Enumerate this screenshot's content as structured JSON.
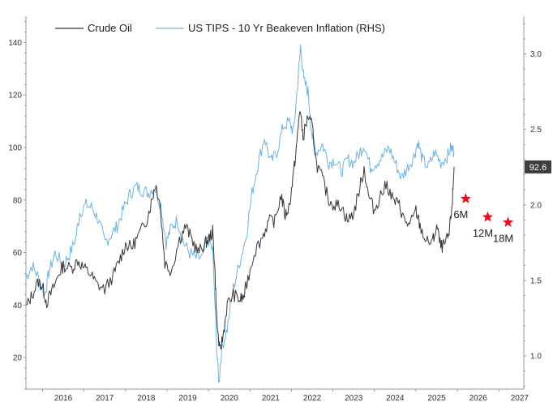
{
  "chart_data": {
    "type": "line",
    "title": "",
    "x": {
      "label": "",
      "range": [
        2015.6,
        2027.6
      ],
      "tick_labels": [
        "2016",
        "2017",
        "2018",
        "2019",
        "2020",
        "2021",
        "2022",
        "2023",
        "2024",
        "2025",
        "2026",
        "2027"
      ]
    },
    "y_left": {
      "label": "",
      "range": [
        8,
        150
      ],
      "ticks": [
        20,
        40,
        60,
        80,
        100,
        120,
        140
      ]
    },
    "y_right": {
      "label": "",
      "range": [
        0.78,
        3.25
      ],
      "ticks": [
        1.0,
        1.5,
        2.0,
        2.5,
        3.0
      ],
      "tick_labels": [
        "1.0",
        "1.5",
        "2.0",
        "2.5",
        "3.0"
      ]
    },
    "legend": {
      "position": "top-left"
    },
    "series": [
      {
        "name": "Crude Oil",
        "axis": "left",
        "color": "#3a3536",
        "points": [
          [
            2015.6,
            39
          ],
          [
            2015.75,
            44
          ],
          [
            2015.9,
            49
          ],
          [
            2016.0,
            47
          ],
          [
            2016.1,
            41
          ],
          [
            2016.25,
            46
          ],
          [
            2016.4,
            52
          ],
          [
            2016.5,
            55
          ],
          [
            2016.7,
            54
          ],
          [
            2016.85,
            57
          ],
          [
            2017.0,
            54
          ],
          [
            2017.15,
            52
          ],
          [
            2017.3,
            48
          ],
          [
            2017.5,
            46
          ],
          [
            2017.7,
            51
          ],
          [
            2017.85,
            57
          ],
          [
            2018.0,
            63
          ],
          [
            2018.15,
            62
          ],
          [
            2018.3,
            66
          ],
          [
            2018.5,
            72
          ],
          [
            2018.62,
            79
          ],
          [
            2018.72,
            86
          ],
          [
            2018.82,
            80
          ],
          [
            2018.95,
            56
          ],
          [
            2019.1,
            53
          ],
          [
            2019.3,
            65
          ],
          [
            2019.45,
            70
          ],
          [
            2019.6,
            65
          ],
          [
            2019.75,
            60
          ],
          [
            2019.9,
            63
          ],
          [
            2020.0,
            65
          ],
          [
            2020.1,
            68
          ],
          [
            2020.15,
            55
          ],
          [
            2020.2,
            34
          ],
          [
            2020.27,
            22
          ],
          [
            2020.35,
            28
          ],
          [
            2020.45,
            40
          ],
          [
            2020.6,
            44
          ],
          [
            2020.75,
            42
          ],
          [
            2020.85,
            43
          ],
          [
            2020.95,
            50
          ],
          [
            2021.1,
            60
          ],
          [
            2021.3,
            66
          ],
          [
            2021.45,
            72
          ],
          [
            2021.6,
            72
          ],
          [
            2021.75,
            82
          ],
          [
            2021.85,
            74
          ],
          [
            2021.95,
            78
          ],
          [
            2022.05,
            90
          ],
          [
            2022.15,
            105
          ],
          [
            2022.2,
            115
          ],
          [
            2022.28,
            104
          ],
          [
            2022.4,
            112
          ],
          [
            2022.5,
            108
          ],
          [
            2022.6,
            94
          ],
          [
            2022.75,
            88
          ],
          [
            2022.9,
            80
          ],
          [
            2023.05,
            78
          ],
          [
            2023.2,
            78
          ],
          [
            2023.35,
            72
          ],
          [
            2023.5,
            75
          ],
          [
            2023.65,
            85
          ],
          [
            2023.75,
            92
          ],
          [
            2023.85,
            82
          ],
          [
            2024.0,
            76
          ],
          [
            2024.15,
            82
          ],
          [
            2024.3,
            86
          ],
          [
            2024.45,
            80
          ],
          [
            2024.6,
            78
          ],
          [
            2024.7,
            73
          ],
          [
            2024.85,
            70
          ],
          [
            2025.0,
            76
          ],
          [
            2025.1,
            70
          ],
          [
            2025.25,
            64
          ],
          [
            2025.4,
            64
          ],
          [
            2025.5,
            70
          ],
          [
            2025.6,
            62
          ],
          [
            2025.7,
            63
          ],
          [
            2025.8,
            67
          ],
          [
            2025.88,
            80
          ],
          [
            2025.92,
            92.6
          ]
        ]
      },
      {
        "name": "US TIPS - 10 Yr Beakeven Inflation (RHS)",
        "axis": "right",
        "color": "#6cb4e0",
        "points": [
          [
            2015.6,
            1.52
          ],
          [
            2015.75,
            1.6
          ],
          [
            2015.9,
            1.52
          ],
          [
            2016.05,
            1.4
          ],
          [
            2016.15,
            1.55
          ],
          [
            2016.3,
            1.68
          ],
          [
            2016.5,
            1.6
          ],
          [
            2016.65,
            1.67
          ],
          [
            2016.8,
            1.78
          ],
          [
            2016.9,
            1.95
          ],
          [
            2017.05,
            2.0
          ],
          [
            2017.2,
            1.98
          ],
          [
            2017.35,
            1.9
          ],
          [
            2017.5,
            1.75
          ],
          [
            2017.65,
            1.8
          ],
          [
            2017.8,
            1.86
          ],
          [
            2017.95,
            1.97
          ],
          [
            2018.1,
            2.07
          ],
          [
            2018.25,
            2.12
          ],
          [
            2018.4,
            2.1
          ],
          [
            2018.55,
            2.08
          ],
          [
            2018.7,
            2.12
          ],
          [
            2018.85,
            2.0
          ],
          [
            2018.98,
            1.75
          ],
          [
            2019.1,
            1.85
          ],
          [
            2019.25,
            1.9
          ],
          [
            2019.4,
            1.75
          ],
          [
            2019.55,
            1.68
          ],
          [
            2019.7,
            1.65
          ],
          [
            2019.85,
            1.65
          ],
          [
            2019.98,
            1.78
          ],
          [
            2020.1,
            1.7
          ],
          [
            2020.2,
            1.05
          ],
          [
            2020.25,
            0.82
          ],
          [
            2020.32,
            1.05
          ],
          [
            2020.45,
            1.18
          ],
          [
            2020.6,
            1.45
          ],
          [
            2020.75,
            1.62
          ],
          [
            2020.9,
            1.78
          ],
          [
            2021.05,
            2.08
          ],
          [
            2021.2,
            2.28
          ],
          [
            2021.35,
            2.45
          ],
          [
            2021.5,
            2.28
          ],
          [
            2021.65,
            2.35
          ],
          [
            2021.8,
            2.52
          ],
          [
            2021.95,
            2.55
          ],
          [
            2022.05,
            2.48
          ],
          [
            2022.15,
            2.8
          ],
          [
            2022.22,
            3.05
          ],
          [
            2022.3,
            2.82
          ],
          [
            2022.4,
            2.75
          ],
          [
            2022.5,
            2.45
          ],
          [
            2022.6,
            2.35
          ],
          [
            2022.75,
            2.4
          ],
          [
            2022.9,
            2.28
          ],
          [
            2023.05,
            2.3
          ],
          [
            2023.2,
            2.22
          ],
          [
            2023.35,
            2.3
          ],
          [
            2023.5,
            2.28
          ],
          [
            2023.65,
            2.35
          ],
          [
            2023.75,
            2.4
          ],
          [
            2023.9,
            2.25
          ],
          [
            2024.05,
            2.28
          ],
          [
            2024.2,
            2.32
          ],
          [
            2024.35,
            2.38
          ],
          [
            2024.5,
            2.28
          ],
          [
            2024.65,
            2.18
          ],
          [
            2024.8,
            2.25
          ],
          [
            2024.95,
            2.32
          ],
          [
            2025.05,
            2.42
          ],
          [
            2025.15,
            2.3
          ],
          [
            2025.3,
            2.25
          ],
          [
            2025.45,
            2.35
          ],
          [
            2025.6,
            2.28
          ],
          [
            2025.75,
            2.32
          ],
          [
            2025.85,
            2.38
          ],
          [
            2025.92,
            2.35
          ]
        ]
      }
    ],
    "value_label": {
      "text": "92.6",
      "value": 92.6,
      "axis": "left"
    },
    "annotations": [
      {
        "label": "6M",
        "x": 2026.2,
        "y": 80.5,
        "color": "#e8111b"
      },
      {
        "label": "12M",
        "x": 2026.73,
        "y": 73.5,
        "color": "#e8111b"
      },
      {
        "label": "18M",
        "x": 2027.22,
        "y": 71.5,
        "color": "#e8111b"
      }
    ]
  }
}
